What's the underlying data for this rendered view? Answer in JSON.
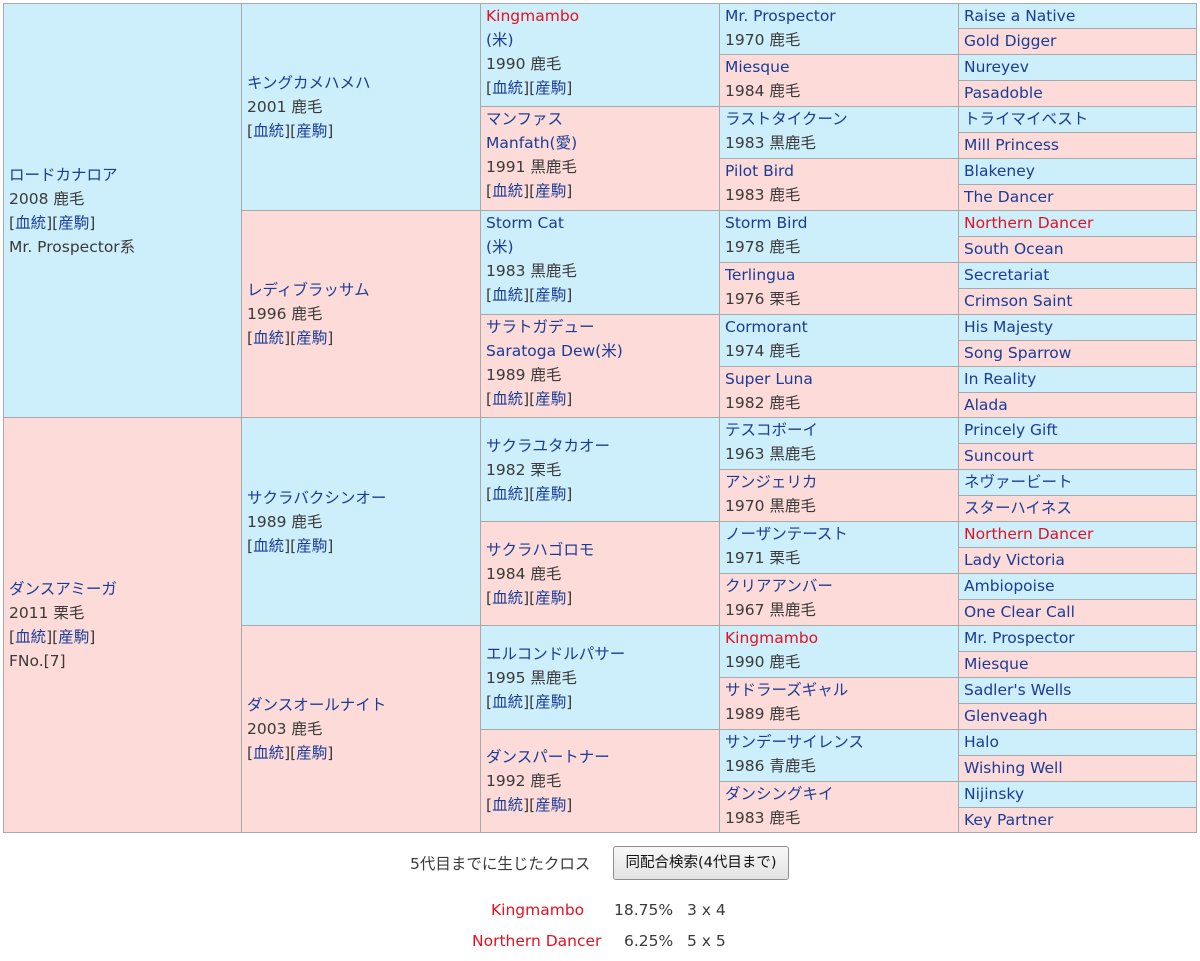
{
  "pedigree": {
    "gen1": [
      {
        "name": "ロードカナロア",
        "year": "2008 鹿毛",
        "link1": "血統",
        "link2": "産駒",
        "extra": "Mr. Prospector系"
      },
      {
        "name": "ダンスアミーガ",
        "year": "2011 栗毛",
        "link1": "血統",
        "link2": "産駒",
        "extra": "FNo.[7]"
      }
    ],
    "gen2": [
      {
        "name": "キングカメハメハ",
        "year": "2001 鹿毛",
        "link1": "血統",
        "link2": "産駒"
      },
      {
        "name": "レディブラッサム",
        "year": "1996 鹿毛",
        "link1": "血統",
        "link2": "産駒"
      },
      {
        "name": "サクラバクシンオー",
        "year": "1989 鹿毛",
        "link1": "血統",
        "link2": "産駒"
      },
      {
        "name": "ダンスオールナイト",
        "year": "2003 鹿毛",
        "link1": "血統",
        "link2": "産駒"
      }
    ],
    "gen3": [
      {
        "name": "Kingmambo",
        "sub": "(米)",
        "year": "1990 鹿毛",
        "link1": "血統",
        "link2": "産駒"
      },
      {
        "name": "マンファス",
        "sub": "Manfath(愛)",
        "year": "1991 黒鹿毛",
        "link1": "血統",
        "link2": "産駒"
      },
      {
        "name": "Storm Cat",
        "sub": "(米)",
        "year": "1983 黒鹿毛",
        "link1": "血統",
        "link2": "産駒"
      },
      {
        "name": "サラトガデュー",
        "sub": "Saratoga Dew(米)",
        "year": "1989 鹿毛",
        "link1": "血統",
        "link2": "産駒"
      },
      {
        "name": "サクラユタカオー",
        "sub": "",
        "year": "1982 栗毛",
        "link1": "血統",
        "link2": "産駒"
      },
      {
        "name": "サクラハゴロモ",
        "sub": "",
        "year": "1984 鹿毛",
        "link1": "血統",
        "link2": "産駒"
      },
      {
        "name": "エルコンドルパサー",
        "sub": "",
        "year": "1995 黒鹿毛",
        "link1": "血統",
        "link2": "産駒"
      },
      {
        "name": "ダンスパートナー",
        "sub": "",
        "year": "1992 鹿毛",
        "link1": "血統",
        "link2": "産駒"
      }
    ],
    "gen4": [
      {
        "name": "Mr. Prospector",
        "year": "1970 鹿毛"
      },
      {
        "name": "Miesque",
        "year": "1984 鹿毛"
      },
      {
        "name": "ラストタイクーン",
        "year": "1983 黒鹿毛"
      },
      {
        "name": "Pilot Bird",
        "year": "1983 鹿毛"
      },
      {
        "name": "Storm Bird",
        "year": "1978 鹿毛"
      },
      {
        "name": "Terlingua",
        "year": "1976 栗毛"
      },
      {
        "name": "Cormorant",
        "year": "1974 鹿毛"
      },
      {
        "name": "Super Luna",
        "year": "1982 鹿毛"
      },
      {
        "name": "テスコボーイ",
        "year": "1963 黒鹿毛"
      },
      {
        "name": "アンジェリカ",
        "year": "1970 黒鹿毛"
      },
      {
        "name": "ノーザンテースト",
        "year": "1971 栗毛"
      },
      {
        "name": "クリアアンバー",
        "year": "1967 黒鹿毛"
      },
      {
        "name": "Kingmambo",
        "year": "1990 鹿毛"
      },
      {
        "name": "サドラーズギャル",
        "year": "1989 鹿毛"
      },
      {
        "name": "サンデーサイレンス",
        "year": "1986 青鹿毛"
      },
      {
        "name": "ダンシングキイ",
        "year": "1983 鹿毛"
      }
    ],
    "gen5": [
      "Raise a Native",
      "Gold Digger",
      "Nureyev",
      "Pasadoble",
      "トライマイベスト",
      "Mill Princess",
      "Blakeney",
      "The Dancer",
      "Northern Dancer",
      "South Ocean",
      "Secretariat",
      "Crimson Saint",
      "His Majesty",
      "Song Sparrow",
      "In Reality",
      "Alada",
      "Princely Gift",
      "Suncourt",
      "ネヴァービート",
      "スターハイネス",
      "Northern Dancer",
      "Lady Victoria",
      "Ambiopoise",
      "One Clear Call",
      "Mr. Prospector",
      "Miesque",
      "Sadler's Wells",
      "Glenveagh",
      "Halo",
      "Wishing Well",
      "Nijinsky",
      "Key Partner"
    ]
  },
  "cross_section": {
    "title": "5代目までに生じたクロス",
    "button": "同配合検索(4代目まで)",
    "crosses": [
      {
        "name": "Kingmambo",
        "pct": "18.75%",
        "gen": "3 x 4"
      },
      {
        "name": "Northern Dancer",
        "pct": "6.25%",
        "gen": "5 x 5"
      }
    ]
  },
  "colors": {
    "male_bg": "#cdeefb",
    "female_bg": "#fddbd8",
    "link": "#1a3c98",
    "inbreed": "#e8101e",
    "border": "#a9a9a9"
  }
}
